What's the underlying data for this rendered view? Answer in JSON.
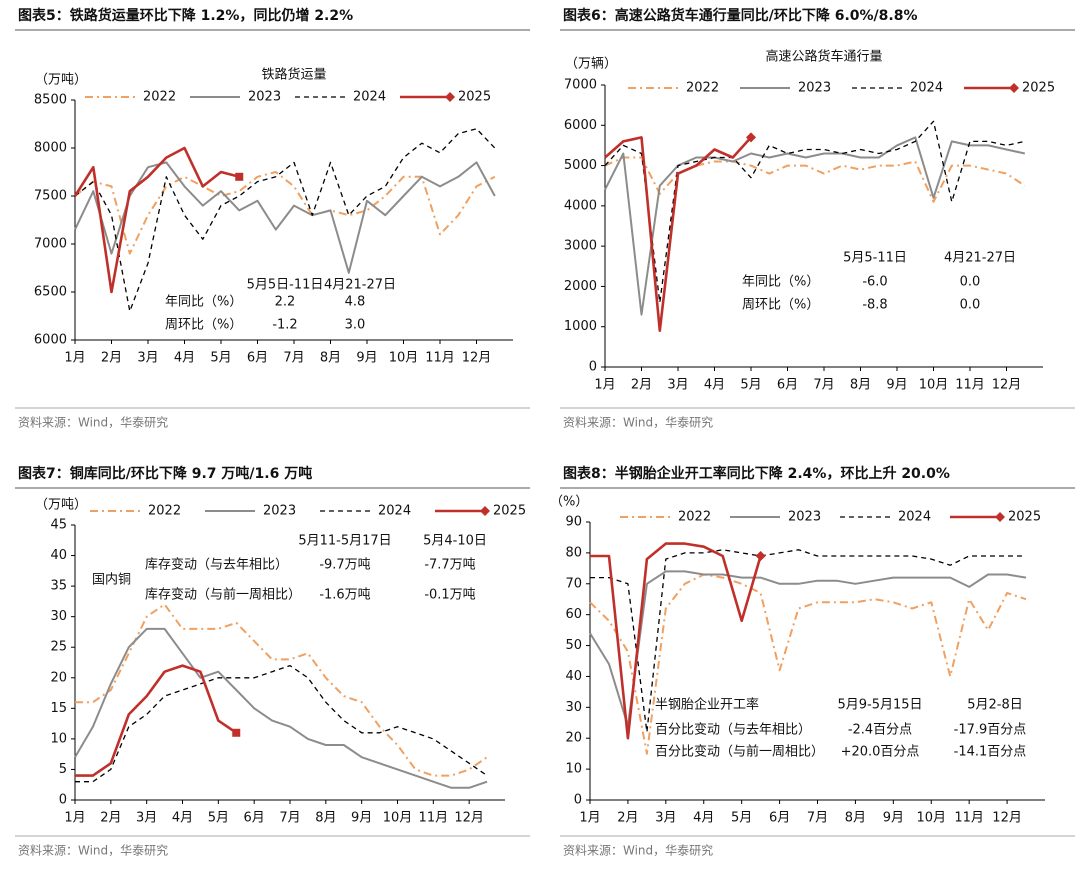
{
  "chart_data": [
    {
      "type": "line",
      "figure_title": "图表5：铁路货运量环比下降 1.2%，同比仍增 2.2%",
      "title": "铁路货运量",
      "y_label": "（万吨）",
      "source": "资料来源：Wind，华泰研究",
      "x": [
        1,
        1.5,
        2,
        2.5,
        3,
        3.5,
        4,
        4.5,
        5,
        5.5,
        6,
        6.5,
        7,
        7.5,
        8,
        8.5,
        9,
        9.5,
        10,
        10.5,
        11,
        11.5,
        12,
        12.5
      ],
      "xlim": [
        1,
        13
      ],
      "xticks": [
        {
          "value": 1,
          "label": "1月"
        },
        {
          "value": 2,
          "label": "2月"
        },
        {
          "value": 3,
          "label": "3月"
        },
        {
          "value": 4,
          "label": "4月"
        },
        {
          "value": 5,
          "label": "5月"
        },
        {
          "value": 6,
          "label": "6月"
        },
        {
          "value": 7,
          "label": "7月"
        },
        {
          "value": 8,
          "label": "8月"
        },
        {
          "value": 9,
          "label": "9月"
        },
        {
          "value": 10,
          "label": "10月"
        },
        {
          "value": 11,
          "label": "11月"
        },
        {
          "value": 12,
          "label": "12月"
        }
      ],
      "ylim": [
        6000,
        8500
      ],
      "yticks": [
        6000,
        6500,
        7000,
        7500,
        8000,
        8500
      ],
      "grid": false,
      "series": [
        {
          "name": "2022",
          "color": "#f0a060",
          "style": "dashdot",
          "values": [
            7500,
            7650,
            7600,
            6900,
            7300,
            7600,
            7700,
            7600,
            7500,
            7550,
            7700,
            7750,
            7600,
            7300,
            7350,
            7300,
            7350,
            7500,
            7700,
            7700,
            7100,
            7300,
            7600,
            7700
          ]
        },
        {
          "name": "2023",
          "color": "#8c8c8c",
          "style": "solid",
          "values": [
            7150,
            7550,
            6900,
            7500,
            7800,
            7850,
            7600,
            7400,
            7550,
            7350,
            7450,
            7150,
            7400,
            7300,
            7350,
            6700,
            7450,
            7300,
            7500,
            7700,
            7600,
            7700,
            7850,
            7500
          ]
        },
        {
          "name": "2024",
          "color": "#000000",
          "style": "dashed",
          "values": [
            7500,
            7650,
            7300,
            6300,
            6800,
            7700,
            7300,
            7050,
            7400,
            7500,
            7650,
            7700,
            7850,
            7300,
            7850,
            7300,
            7500,
            7600,
            7900,
            8050,
            7950,
            8150,
            8200,
            8000
          ]
        },
        {
          "name": "2025",
          "color": "#c0302a",
          "style": "bold",
          "marker": "square",
          "values": [
            7500,
            7800,
            6500,
            7550,
            7700,
            7900,
            8000,
            7600,
            7750,
            7700,
            null,
            null,
            null,
            null,
            null,
            null,
            null,
            null,
            null,
            null,
            null,
            null,
            null,
            null
          ]
        }
      ],
      "table": {
        "header": [
          "5月5日-11日",
          "4月21-27日"
        ],
        "rows": [
          [
            "年同比（%）",
            "2.2",
            "4.8"
          ],
          [
            "周环比（%）",
            "-1.2",
            "3.0"
          ]
        ]
      }
    },
    {
      "type": "line",
      "figure_title": "图表6：高速公路货车通行量同比/环比下降 6.0%/8.8%",
      "title": "高速公路货车通行量",
      "y_label": "（万辆）",
      "source": "资料来源：Wind，华泰研究",
      "x": [
        1,
        1.5,
        2,
        2.5,
        3,
        3.5,
        4,
        4.5,
        5,
        5.5,
        6,
        6.5,
        7,
        7.5,
        8,
        8.5,
        9,
        9.5,
        10,
        10.5,
        11,
        11.5,
        12,
        12.5
      ],
      "xlim": [
        1,
        13
      ],
      "xticks": [
        {
          "value": 1,
          "label": "1月"
        },
        {
          "value": 2,
          "label": "2月"
        },
        {
          "value": 3,
          "label": "3月"
        },
        {
          "value": 4,
          "label": "4月"
        },
        {
          "value": 5,
          "label": "5月"
        },
        {
          "value": 6,
          "label": "6月"
        },
        {
          "value": 7,
          "label": "7月"
        },
        {
          "value": 8,
          "label": "8月"
        },
        {
          "value": 9,
          "label": "9月"
        },
        {
          "value": 10,
          "label": "10月"
        },
        {
          "value": 11,
          "label": "11月"
        },
        {
          "value": 12,
          "label": "12月"
        }
      ],
      "ylim": [
        0,
        7000
      ],
      "yticks": [
        0,
        1000,
        2000,
        3000,
        4000,
        5000,
        6000,
        7000
      ],
      "grid": false,
      "series": [
        {
          "name": "2022",
          "color": "#f0a060",
          "style": "dashdot",
          "values": [
            5000,
            5200,
            5200,
            4300,
            4800,
            5000,
            5100,
            5100,
            5000,
            4800,
            5000,
            5000,
            4800,
            5000,
            4900,
            5000,
            5000,
            5100,
            4100,
            5000,
            5000,
            4900,
            4800,
            4500
          ]
        },
        {
          "name": "2023",
          "color": "#8c8c8c",
          "style": "solid",
          "values": [
            4400,
            5300,
            1300,
            4500,
            5000,
            5200,
            5200,
            5100,
            5300,
            5200,
            5300,
            5200,
            5300,
            5300,
            5200,
            5200,
            5500,
            5700,
            4200,
            5600,
            5500,
            5500,
            5400,
            5300
          ]
        },
        {
          "name": "2024",
          "color": "#000000",
          "style": "dashed",
          "values": [
            5000,
            5500,
            5300,
            1600,
            5000,
            5100,
            5200,
            5200,
            4700,
            5500,
            5300,
            5400,
            5400,
            5300,
            5400,
            5300,
            5400,
            5600,
            6100,
            4100,
            5600,
            5600,
            5500,
            5600
          ]
        },
        {
          "name": "2025",
          "color": "#c0302a",
          "style": "bold",
          "marker": "diamond",
          "values": [
            5200,
            5600,
            5700,
            900,
            4800,
            5000,
            5400,
            5200,
            5700,
            null,
            null,
            null,
            null,
            null,
            null,
            null,
            null,
            null,
            null,
            null,
            null,
            null,
            null,
            null
          ]
        }
      ],
      "table": {
        "header": [
          "5月5-11日",
          "4月21-27日"
        ],
        "rows": [
          [
            "年同比（%）",
            "-6.0",
            "0.0"
          ],
          [
            "周环比（%）",
            "-8.8",
            "0.0"
          ]
        ]
      }
    },
    {
      "type": "line",
      "figure_title": "图表7：铜库同比/环比下降 9.7 万吨/1.6 万吨",
      "y_label": "（万吨）",
      "annotation": "国内铜",
      "source": "资料来源：Wind，华泰研究",
      "x": [
        1,
        1.5,
        2,
        2.5,
        3,
        3.5,
        4,
        4.5,
        5,
        5.5,
        6,
        6.5,
        7,
        7.5,
        8,
        8.5,
        9,
        9.5,
        10,
        10.5,
        11,
        11.5,
        12,
        12.5
      ],
      "xlim": [
        1,
        13
      ],
      "xticks": [
        {
          "value": 1,
          "label": "1月"
        },
        {
          "value": 2,
          "label": "2月"
        },
        {
          "value": 3,
          "label": "3月"
        },
        {
          "value": 4,
          "label": "4月"
        },
        {
          "value": 5,
          "label": "5月"
        },
        {
          "value": 6,
          "label": "6月"
        },
        {
          "value": 7,
          "label": "7月"
        },
        {
          "value": 8,
          "label": "8月"
        },
        {
          "value": 9,
          "label": "9月"
        },
        {
          "value": 10,
          "label": "10月"
        },
        {
          "value": 11,
          "label": "11月"
        },
        {
          "value": 12,
          "label": "12月"
        }
      ],
      "ylim": [
        0,
        45
      ],
      "yticks": [
        0,
        5,
        10,
        15,
        20,
        25,
        30,
        35,
        40,
        45
      ],
      "grid": false,
      "series": [
        {
          "name": "2022",
          "color": "#f0a060",
          "style": "dashdot",
          "values": [
            16,
            16,
            18,
            24,
            30,
            32,
            28,
            28,
            28,
            29,
            26,
            23,
            23,
            24,
            20,
            17,
            16,
            12,
            9,
            5,
            4,
            4,
            5,
            7
          ]
        },
        {
          "name": "2023",
          "color": "#8c8c8c",
          "style": "solid",
          "values": [
            7,
            12,
            19,
            25,
            28,
            28,
            24,
            20,
            21,
            18,
            15,
            13,
            12,
            10,
            9,
            9,
            7,
            6,
            5,
            4,
            3,
            2,
            2,
            3
          ]
        },
        {
          "name": "2024",
          "color": "#000000",
          "style": "dashed",
          "values": [
            3,
            3,
            5,
            12,
            14,
            17,
            18,
            19,
            20,
            20,
            20,
            21,
            22,
            20,
            16,
            13,
            11,
            11,
            12,
            11,
            10,
            8,
            6,
            4
          ]
        },
        {
          "name": "2025",
          "color": "#c0302a",
          "style": "bold",
          "marker": "square",
          "values": [
            4,
            4,
            6,
            14,
            17,
            21,
            22,
            21,
            13,
            11,
            null,
            null,
            null,
            null,
            null,
            null,
            null,
            null,
            null,
            null,
            null,
            null,
            null,
            null
          ]
        }
      ],
      "table": {
        "header": [
          "5月11-5月17日",
          "5月4-10日"
        ],
        "rows": [
          [
            "库存变动（与去年相比）",
            "-9.7万吨",
            "-7.7万吨"
          ],
          [
            "库存变动（与前一周相比）",
            "-1.6万吨",
            "-0.1万吨"
          ]
        ]
      }
    },
    {
      "type": "line",
      "figure_title": "图表8：半钢胎企业开工率同比下降 2.4%，环比上升 20.0%",
      "y_label": "（%）",
      "source": "资料来源：Wind，华泰研究",
      "x": [
        1,
        1.5,
        2,
        2.5,
        3,
        3.5,
        4,
        4.5,
        5,
        5.5,
        6,
        6.5,
        7,
        7.5,
        8,
        8.5,
        9,
        9.5,
        10,
        10.5,
        11,
        11.5,
        12,
        12.5
      ],
      "xlim": [
        1,
        13
      ],
      "xticks": [
        {
          "value": 1,
          "label": "1月"
        },
        {
          "value": 2,
          "label": "2月"
        },
        {
          "value": 3,
          "label": "3月"
        },
        {
          "value": 4,
          "label": "4月"
        },
        {
          "value": 5,
          "label": "5月"
        },
        {
          "value": 6,
          "label": "6月"
        },
        {
          "value": 7,
          "label": "7月"
        },
        {
          "value": 8,
          "label": "8月"
        },
        {
          "value": 9,
          "label": "9月"
        },
        {
          "value": 10,
          "label": "10月"
        },
        {
          "value": 11,
          "label": "11月"
        },
        {
          "value": 12,
          "label": "12月"
        }
      ],
      "ylim": [
        0,
        90
      ],
      "yticks": [
        0,
        10,
        20,
        30,
        40,
        50,
        60,
        70,
        80,
        90
      ],
      "grid": false,
      "series": [
        {
          "name": "2022",
          "color": "#f0a060",
          "style": "dashdot",
          "values": [
            64,
            58,
            48,
            15,
            62,
            70,
            73,
            72,
            70,
            67,
            42,
            62,
            64,
            64,
            64,
            65,
            64,
            62,
            64,
            40,
            65,
            55,
            67,
            65
          ]
        },
        {
          "name": "2023",
          "color": "#8c8c8c",
          "style": "solid",
          "values": [
            54,
            44,
            24,
            70,
            74,
            74,
            73,
            73,
            72,
            72,
            70,
            70,
            71,
            71,
            70,
            71,
            72,
            72,
            72,
            72,
            69,
            73,
            73,
            72
          ]
        },
        {
          "name": "2024",
          "color": "#000000",
          "style": "dashed",
          "values": [
            72,
            72,
            70,
            22,
            78,
            80,
            80,
            81,
            80,
            79,
            80,
            81,
            79,
            79,
            79,
            79,
            79,
            79,
            78,
            76,
            79,
            79,
            79,
            79
          ]
        },
        {
          "name": "2025",
          "color": "#c0302a",
          "style": "bold",
          "marker": "diamond",
          "values": [
            79,
            79,
            20,
            78,
            83,
            83,
            82,
            79,
            58,
            79,
            null,
            null,
            null,
            null,
            null,
            null,
            null,
            null,
            null,
            null,
            null,
            null,
            null,
            null
          ]
        }
      ],
      "table": {
        "header": [
          "半钢胎企业开工率",
          "5月9-5月15日",
          "5月2-8日"
        ],
        "rows": [
          [
            "百分比变动（与去年相比）",
            "-2.4百分点",
            "-17.9百分点"
          ],
          [
            "百分比变动（与前一周相比）",
            "+20.0百分点",
            "-14.1百分点"
          ]
        ]
      }
    }
  ]
}
